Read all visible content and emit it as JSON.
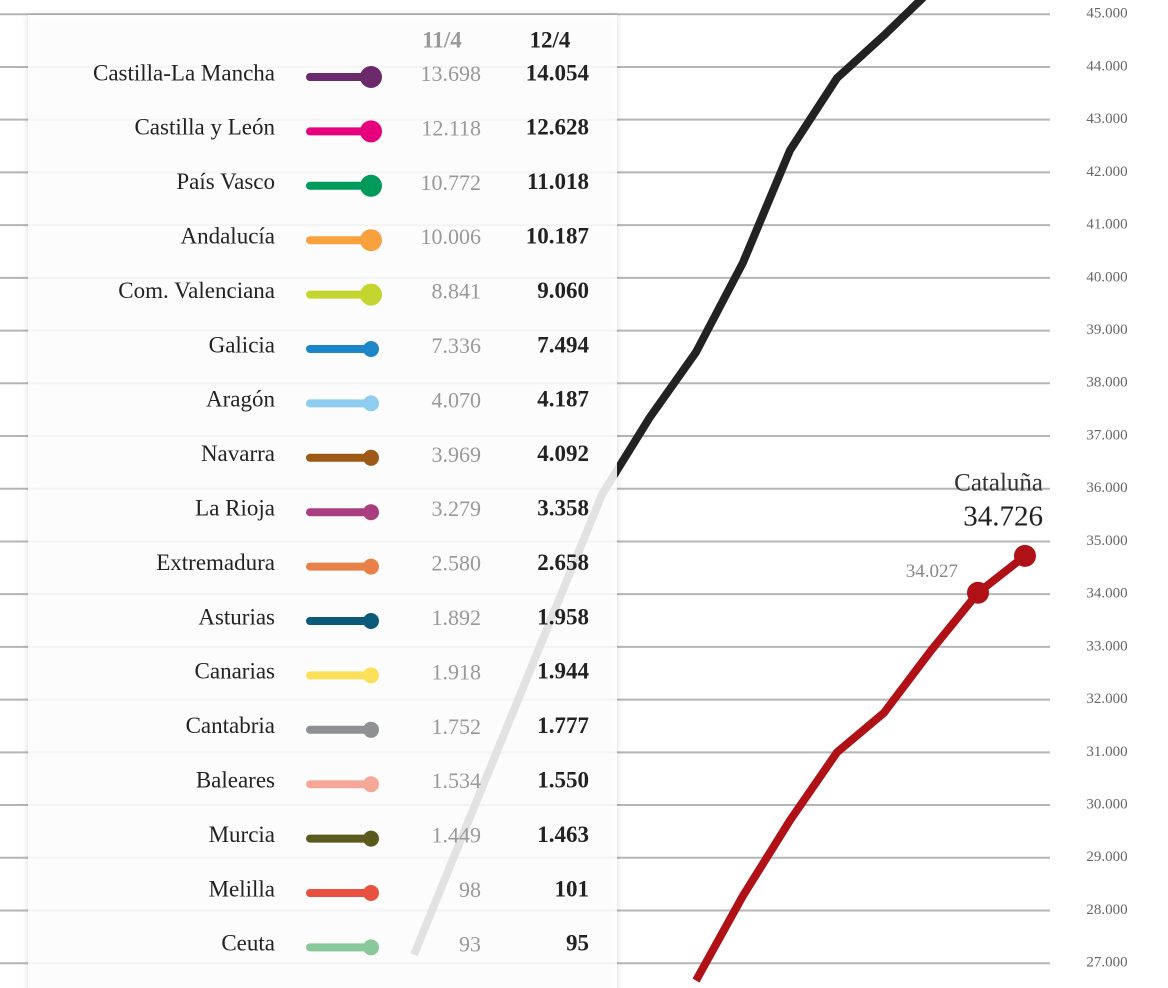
{
  "chart_data": {
    "type": "line",
    "categories": [
      null,
      null,
      null,
      null,
      null,
      null,
      null,
      null,
      null,
      null,
      null,
      null,
      null,
      null,
      null
    ],
    "series": [
      {
        "color": "#222222",
        "values": [
          null,
          27160,
          29350,
          31530,
          33710,
          35890,
          37330,
          38590,
          40290,
          42420,
          43790,
          44600,
          45460,
          null,
          null
        ]
      },
      {
        "name": "Cataluña",
        "color": "#b01116",
        "values": [
          null,
          null,
          null,
          null,
          null,
          null,
          null,
          26670,
          28280,
          29710,
          31000,
          31750,
          32930,
          34027,
          34726
        ],
        "value_labels": [
          null,
          null,
          null,
          null,
          null,
          null,
          null,
          null,
          null,
          null,
          null,
          null,
          null,
          "34.027",
          "34.726"
        ]
      }
    ],
    "ylim": [
      26530,
      45270
    ],
    "yticks": [
      {
        "value": 27000,
        "label": "27.000"
      },
      {
        "value": 28000,
        "label": "28.000"
      },
      {
        "value": 29000,
        "label": "29.000"
      },
      {
        "value": 30000,
        "label": "30.000"
      },
      {
        "value": 31000,
        "label": "31.000"
      },
      {
        "value": 32000,
        "label": "32.000"
      },
      {
        "value": 33000,
        "label": "33.000"
      },
      {
        "value": 34000,
        "label": "34.000"
      },
      {
        "value": 35000,
        "label": "35.000"
      },
      {
        "value": 36000,
        "label": "36.000"
      },
      {
        "value": 37000,
        "label": "37.000"
      },
      {
        "value": 38000,
        "label": "38.000"
      },
      {
        "value": 39000,
        "label": "39.000"
      },
      {
        "value": 40000,
        "label": "40.000"
      },
      {
        "value": 41000,
        "label": "41.000"
      },
      {
        "value": 42000,
        "label": "42.000"
      },
      {
        "value": 43000,
        "label": "43.000"
      },
      {
        "value": 44000,
        "label": "44.000"
      },
      {
        "value": 45000,
        "label": "45.000"
      }
    ],
    "grid": true
  },
  "table": {
    "columns": [
      "11/4",
      "12/4"
    ],
    "rows": [
      {
        "name": "Castilla-La Mancha",
        "color": "#6b2a6b",
        "prev": "13.698",
        "curr": "14.054"
      },
      {
        "name": "Castilla y León",
        "color": "#e6007e",
        "prev": "12.118",
        "curr": "12.628"
      },
      {
        "name": "País Vasco",
        "color": "#009a5a",
        "prev": "10.772",
        "curr": "11.018"
      },
      {
        "name": "Andalucía",
        "color": "#f9a03f",
        "prev": "10.006",
        "curr": "10.187"
      },
      {
        "name": "Com. Valenciana",
        "color": "#c5d52f",
        "prev": "8.841",
        "curr": "9.060"
      },
      {
        "name": "Galicia",
        "color": "#1b86c8",
        "prev": "7.336",
        "curr": "7.494"
      },
      {
        "name": "Aragón",
        "color": "#8fcdf0",
        "prev": "4.070",
        "curr": "4.187"
      },
      {
        "name": "Navarra",
        "color": "#9c5a16",
        "prev": "3.969",
        "curr": "4.092"
      },
      {
        "name": "La Rioja",
        "color": "#a83e7e",
        "prev": "3.279",
        "curr": "3.358"
      },
      {
        "name": "Extremadura",
        "color": "#e8804a",
        "prev": "2.580",
        "curr": "2.658"
      },
      {
        "name": "Asturias",
        "color": "#0b5a7a",
        "prev": "1.892",
        "curr": "1.958"
      },
      {
        "name": "Canarias",
        "color": "#fde05a",
        "prev": "1.918",
        "curr": "1.944"
      },
      {
        "name": "Cantabria",
        "color": "#8f9094",
        "prev": "1.752",
        "curr": "1.777"
      },
      {
        "name": "Baleares",
        "color": "#f5a898",
        "prev": "1.534",
        "curr": "1.550"
      },
      {
        "name": "Murcia",
        "color": "#5a5a1e",
        "prev": "1.449",
        "curr": "1.463"
      },
      {
        "name": "Melilla",
        "color": "#e85040",
        "prev": "98",
        "curr": "101"
      },
      {
        "name": "Ceuta",
        "color": "#88c89a",
        "prev": "93",
        "curr": "95"
      }
    ]
  }
}
